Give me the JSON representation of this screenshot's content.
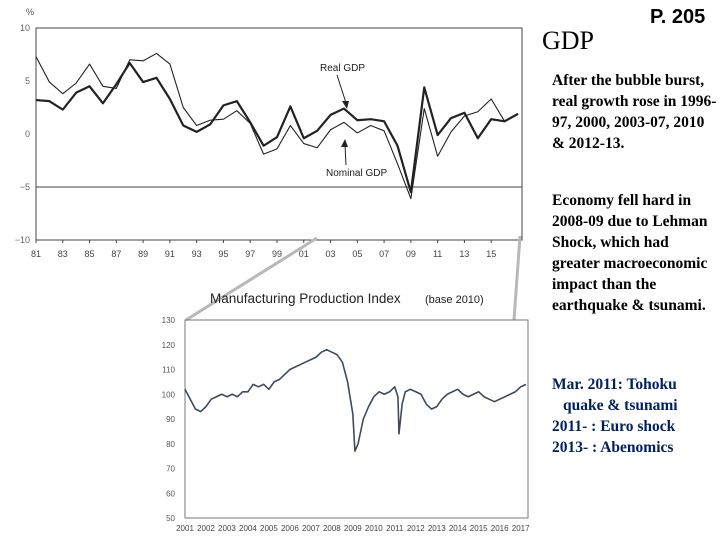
{
  "slide": {
    "title": "GDP",
    "page_number": "P. 205"
  },
  "notes": {
    "recovery": "After the bubble burst, real growth rose in 1996-97, 2000, 2003-07, 2010 & 2012-13.",
    "shock": "Economy fell hard in 2008-09 due to Lehman Shock, which had greater macroeconomic impact than the earthquake & tsunami.",
    "events": [
      "Mar. 2011: Tohoku",
      "quake & tsunami",
      "2011- : Euro shock",
      "2013- : Abenomics"
    ]
  },
  "colors": {
    "line": "#222222",
    "ipi_line": "#3e4a5e",
    "zoom_connector": "#b8b8b8",
    "events_text": "#002060"
  },
  "chart_data": [
    {
      "type": "line",
      "unit_label": "%",
      "x": [
        1981,
        1982,
        1983,
        1984,
        1985,
        1986,
        1987,
        1988,
        1989,
        1990,
        1991,
        1992,
        1993,
        1994,
        1995,
        1996,
        1997,
        1998,
        1999,
        2000,
        2001,
        2002,
        2003,
        2004,
        2005,
        2006,
        2007,
        2008,
        2009,
        2010,
        2011,
        2012,
        2013,
        2014,
        2015,
        2016,
        2017
      ],
      "x_tick_labels": [
        "81",
        "83",
        "85",
        "87",
        "89",
        "91",
        "93",
        "95",
        "97",
        "99",
        "01",
        "03",
        "05",
        "07",
        "09",
        "11",
        "13",
        "15"
      ],
      "y_ticks": [
        10,
        5,
        0,
        -5,
        -10
      ],
      "y_tick_labels": [
        "10",
        "5",
        "0",
        "−5",
        "−10"
      ],
      "ylim": [
        -10,
        10
      ],
      "reference_line": -5,
      "series": [
        {
          "name": "Real GDP",
          "values": [
            3.2,
            3.1,
            2.3,
            3.9,
            4.5,
            2.9,
            4.7,
            6.7,
            4.9,
            5.3,
            3.3,
            0.8,
            0.2,
            0.9,
            2.7,
            3.1,
            1.1,
            -1.1,
            -0.3,
            2.6,
            -0.4,
            0.3,
            1.8,
            2.4,
            1.3,
            1.4,
            1.2,
            -1.1,
            -5.5,
            4.4,
            -0.1,
            1.5,
            2.0,
            -0.4,
            1.4,
            1.2,
            1.9
          ]
        },
        {
          "name": "Nominal GDP",
          "values": [
            7.3,
            4.9,
            3.8,
            4.8,
            6.6,
            4.5,
            4.3,
            7.0,
            6.9,
            7.6,
            6.6,
            2.5,
            0.8,
            1.3,
            1.4,
            2.2,
            1.0,
            -1.9,
            -1.4,
            0.8,
            -0.9,
            -1.3,
            0.4,
            1.1,
            0.1,
            0.8,
            0.3,
            -2.8,
            -6.1,
            2.4,
            -2.1,
            0.2,
            1.7,
            2.1,
            3.3,
            1.2,
            1.9
          ]
        }
      ]
    },
    {
      "type": "line",
      "title": "Manufacturing Production Index",
      "subtitle": "(base 2010)",
      "ylim": [
        50,
        130
      ],
      "y_ticks": [
        50,
        60,
        70,
        80,
        90,
        100,
        110,
        120,
        130
      ],
      "x_tick_labels": [
        "2001",
        "2002",
        "2003",
        "2004",
        "2005",
        "2006",
        "2007",
        "2008",
        "2009",
        "2010",
        "2011",
        "2012",
        "2013",
        "2014",
        "2015",
        "2016",
        "2017"
      ],
      "x": [
        2001.0,
        2001.25,
        2001.5,
        2001.75,
        2002.0,
        2002.25,
        2002.5,
        2002.75,
        2003.0,
        2003.25,
        2003.5,
        2003.75,
        2004.0,
        2004.25,
        2004.5,
        2004.75,
        2005.0,
        2005.25,
        2005.5,
        2005.75,
        2006.0,
        2006.25,
        2006.5,
        2006.75,
        2007.0,
        2007.25,
        2007.5,
        2007.75,
        2008.0,
        2008.25,
        2008.5,
        2008.75,
        2009.0,
        2009.1,
        2009.25,
        2009.5,
        2009.75,
        2010.0,
        2010.25,
        2010.5,
        2010.75,
        2011.0,
        2011.15,
        2011.2,
        2011.35,
        2011.5,
        2011.75,
        2012.0,
        2012.25,
        2012.5,
        2012.75,
        2013.0,
        2013.25,
        2013.5,
        2013.75,
        2014.0,
        2014.25,
        2014.5,
        2014.75,
        2015.0,
        2015.25,
        2015.5,
        2015.75,
        2016.0,
        2016.25,
        2016.5,
        2016.75,
        2017.0,
        2017.25
      ],
      "values": [
        102,
        98,
        94,
        93,
        95,
        98,
        99,
        100,
        99,
        100,
        99,
        101,
        101,
        104,
        103,
        104,
        102,
        105,
        106,
        108,
        110,
        111,
        112,
        113,
        114,
        115,
        117,
        118,
        117,
        116,
        113,
        105,
        92,
        77,
        80,
        90,
        95,
        99,
        101,
        100,
        101,
        103,
        99,
        84,
        96,
        101,
        102,
        101,
        100,
        96,
        94,
        95,
        98,
        100,
        101,
        102,
        100,
        99,
        100,
        101,
        99,
        98,
        97,
        98,
        99,
        100,
        101,
        103,
        104
      ]
    }
  ]
}
